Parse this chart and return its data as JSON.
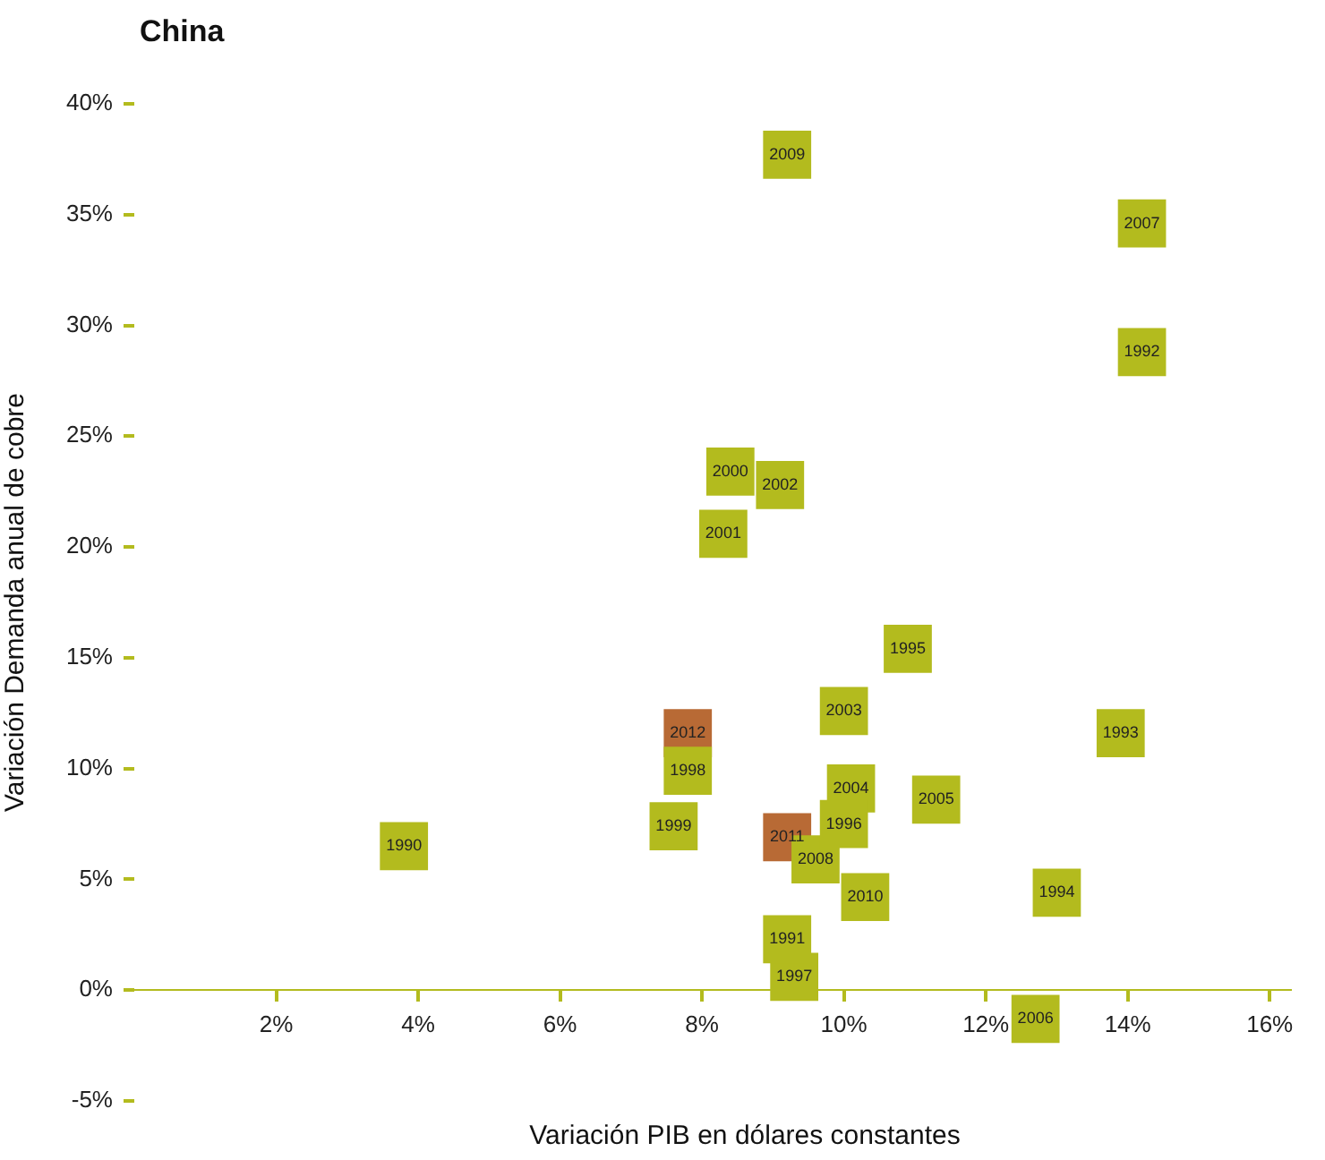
{
  "chart_data": {
    "type": "scatter",
    "title": "China",
    "xlabel": "Variación PIB en dólares constantes",
    "ylabel": "Variación Demanda anual de cobre",
    "xlim": [
      0,
      16.3
    ],
    "ylim": [
      -5,
      40
    ],
    "xticks": [
      {
        "value": 2,
        "label": "2%"
      },
      {
        "value": 4,
        "label": "4%"
      },
      {
        "value": 6,
        "label": "6%"
      },
      {
        "value": 8,
        "label": "8%"
      },
      {
        "value": 10,
        "label": "10%"
      },
      {
        "value": 12,
        "label": "12%"
      },
      {
        "value": 14,
        "label": "14%"
      },
      {
        "value": 16,
        "label": "16%"
      }
    ],
    "yticks": [
      {
        "value": -5,
        "label": "-5%"
      },
      {
        "value": 0,
        "label": "0%"
      },
      {
        "value": 5,
        "label": "5%"
      },
      {
        "value": 10,
        "label": "10%"
      },
      {
        "value": 15,
        "label": "15%"
      },
      {
        "value": 20,
        "label": "20%"
      },
      {
        "value": 25,
        "label": "25%"
      },
      {
        "value": 30,
        "label": "30%"
      },
      {
        "value": 35,
        "label": "35%"
      },
      {
        "value": 40,
        "label": "40%"
      }
    ],
    "grid": false,
    "legend": false,
    "marker": "square",
    "series": [
      {
        "name": "1990",
        "color": "#b3bb1e",
        "x": [
          3.8
        ],
        "values": [
          6.5
        ]
      },
      {
        "name": "1991",
        "color": "#b3bb1e",
        "x": [
          9.2
        ],
        "values": [
          2.3
        ]
      },
      {
        "name": "1992",
        "color": "#b3bb1e",
        "x": [
          14.2
        ],
        "values": [
          28.8
        ]
      },
      {
        "name": "1993",
        "color": "#b3bb1e",
        "x": [
          13.9
        ],
        "values": [
          11.6
        ]
      },
      {
        "name": "1994",
        "color": "#b3bb1e",
        "x": [
          13.0
        ],
        "values": [
          4.4
        ]
      },
      {
        "name": "1995",
        "color": "#b3bb1e",
        "x": [
          10.9
        ],
        "values": [
          15.4
        ]
      },
      {
        "name": "1996",
        "color": "#b3bb1e",
        "x": [
          10.0
        ],
        "values": [
          7.5
        ]
      },
      {
        "name": "1997",
        "color": "#b3bb1e",
        "x": [
          9.3
        ],
        "values": [
          0.6
        ]
      },
      {
        "name": "1998",
        "color": "#b3bb1e",
        "x": [
          7.8
        ],
        "values": [
          9.9
        ]
      },
      {
        "name": "1999",
        "color": "#b3bb1e",
        "x": [
          7.6
        ],
        "values": [
          7.4
        ]
      },
      {
        "name": "2000",
        "color": "#b3bb1e",
        "x": [
          8.4
        ],
        "values": [
          23.4
        ]
      },
      {
        "name": "2001",
        "color": "#b3bb1e",
        "x": [
          8.3
        ],
        "values": [
          20.6
        ]
      },
      {
        "name": "2002",
        "color": "#b3bb1e",
        "x": [
          9.1
        ],
        "values": [
          22.8
        ]
      },
      {
        "name": "2003",
        "color": "#b3bb1e",
        "x": [
          10.0
        ],
        "values": [
          12.6
        ]
      },
      {
        "name": "2004",
        "color": "#b3bb1e",
        "x": [
          10.1
        ],
        "values": [
          9.1
        ]
      },
      {
        "name": "2005",
        "color": "#b3bb1e",
        "x": [
          11.3
        ],
        "values": [
          8.6
        ]
      },
      {
        "name": "2006",
        "color": "#b3bb1e",
        "x": [
          12.7
        ],
        "values": [
          -1.3
        ]
      },
      {
        "name": "2007",
        "color": "#b3bb1e",
        "x": [
          14.2
        ],
        "values": [
          34.6
        ]
      },
      {
        "name": "2008",
        "color": "#b3bb1e",
        "x": [
          9.6
        ],
        "values": [
          5.9
        ]
      },
      {
        "name": "2009",
        "color": "#b3bb1e",
        "x": [
          9.2
        ],
        "values": [
          37.7
        ]
      },
      {
        "name": "2010",
        "color": "#b3bb1e",
        "x": [
          10.3
        ],
        "values": [
          4.2
        ]
      },
      {
        "name": "2011",
        "color": "#b86a35",
        "x": [
          9.2
        ],
        "values": [
          6.9
        ]
      },
      {
        "name": "2012",
        "color": "#b86a35",
        "x": [
          7.8
        ],
        "values": [
          11.6
        ]
      }
    ]
  }
}
